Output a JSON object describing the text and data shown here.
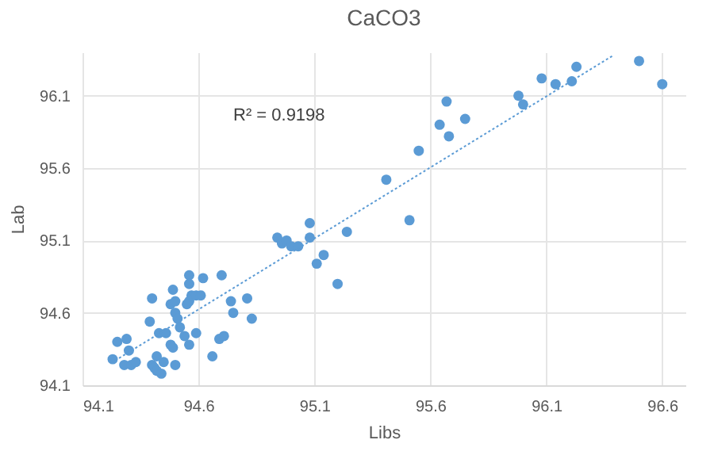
{
  "chart_data": {
    "type": "scatter",
    "title": "CaCO3",
    "xlabel": "Libs",
    "ylabel": "Lab",
    "annotations": [
      "R² = 0.9198"
    ],
    "xlim": [
      94.1,
      96.7
    ],
    "xticks": [
      94.1,
      94.6,
      95.1,
      95.6,
      96.1,
      96.6
    ],
    "ylim": [
      94.1,
      96.4
    ],
    "yticks": [
      94.1,
      94.6,
      95.1,
      95.6,
      96.1
    ],
    "grid": true,
    "series": [
      {
        "marker": "circle",
        "color": "#5b9bd5",
        "x": [
          94.94,
          94.96,
          94.98,
          95.0,
          95.03,
          95.08,
          95.08,
          95.11,
          95.14,
          95.24,
          95.41,
          95.51,
          95.55,
          95.64,
          95.67,
          95.68,
          95.75,
          95.98,
          96.0,
          96.08,
          96.14,
          96.21,
          96.23,
          96.5,
          96.6,
          95.2,
          94.56,
          94.62,
          94.7,
          94.49,
          94.56,
          94.4,
          94.48,
          94.5,
          94.56,
          94.57,
          94.59,
          94.61,
          94.55,
          94.5,
          94.74,
          94.81,
          94.75,
          94.83,
          94.39,
          94.51,
          94.52,
          94.43,
          94.46,
          94.54,
          94.59,
          94.56,
          94.29,
          94.25,
          94.3,
          94.48,
          94.49,
          94.69,
          94.71,
          94.66,
          94.23,
          94.28,
          94.31,
          94.33,
          94.4,
          94.42,
          94.45,
          94.41,
          94.42,
          94.44,
          94.5
        ],
        "values": [
          95.12,
          95.08,
          95.1,
          95.06,
          95.06,
          95.12,
          95.22,
          94.94,
          95.0,
          95.16,
          95.52,
          95.24,
          95.72,
          95.9,
          96.06,
          95.82,
          95.94,
          96.1,
          96.04,
          96.22,
          96.18,
          96.2,
          96.3,
          96.34,
          96.18,
          94.8,
          94.86,
          94.84,
          94.86,
          94.76,
          94.8,
          94.7,
          94.66,
          94.68,
          94.68,
          94.72,
          94.72,
          94.72,
          94.66,
          94.6,
          94.68,
          94.7,
          94.6,
          94.56,
          94.54,
          94.56,
          94.5,
          94.46,
          94.46,
          94.44,
          94.46,
          94.38,
          94.42,
          94.4,
          94.34,
          94.38,
          94.36,
          94.42,
          94.44,
          94.3,
          94.28,
          94.24,
          94.24,
          94.26,
          94.24,
          94.3,
          94.26,
          94.22,
          94.2,
          94.18,
          94.24
        ]
      },
      {
        "type": "line",
        "color": "#5b9bd5",
        "line_style": "dotted",
        "x": [
          94.24,
          96.39
        ],
        "values": [
          94.27,
          96.38
        ]
      }
    ]
  }
}
